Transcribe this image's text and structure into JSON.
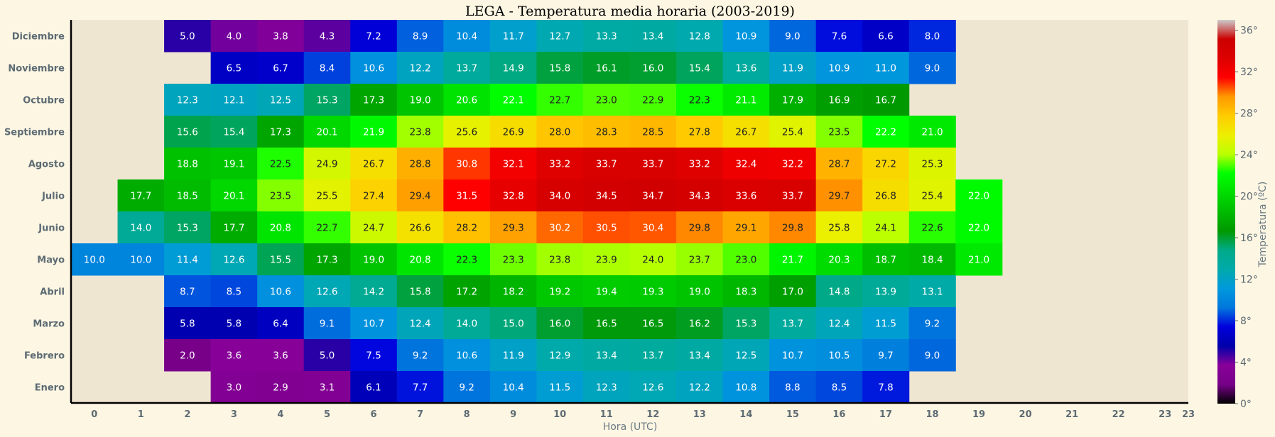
{
  "chart_data": {
    "type": "heatmap",
    "title": "LEGA - Temperatura media horaria (2003-2019)",
    "xlabel": "Hora (UTC)",
    "colorbar_label": "Temperatura (ºC)",
    "x": [
      0,
      1,
      2,
      3,
      4,
      5,
      6,
      7,
      8,
      9,
      10,
      11,
      12,
      13,
      14,
      15,
      16,
      17,
      18,
      19,
      20,
      21,
      22,
      23
    ],
    "y_categories": [
      "Diciembre",
      "Noviembre",
      "Octubre",
      "Septiembre",
      "Agosto",
      "Julio",
      "Junio",
      "Mayo",
      "Abril",
      "Marzo",
      "Febrero",
      "Enero"
    ],
    "colorbar_range": [
      0,
      37
    ],
    "colorbar_ticks": [
      "0°",
      "4°",
      "8°",
      "12°",
      "16°",
      "20°",
      "24°",
      "28°",
      "32°",
      "36°"
    ],
    "colormap": "nipy_spectral",
    "missing_color": "#efe6d2",
    "values": [
      [
        null,
        null,
        5.0,
        4.0,
        3.8,
        4.3,
        7.2,
        8.9,
        10.4,
        11.7,
        12.7,
        13.3,
        13.4,
        12.8,
        10.9,
        9.0,
        7.6,
        6.6,
        8.0,
        null,
        null,
        null,
        null,
        null
      ],
      [
        null,
        null,
        null,
        6.5,
        6.7,
        8.4,
        10.6,
        12.2,
        13.7,
        14.9,
        15.8,
        16.1,
        16.0,
        15.4,
        13.6,
        11.9,
        10.9,
        11.0,
        9.0,
        null,
        null,
        null,
        null,
        null
      ],
      [
        null,
        null,
        12.3,
        12.1,
        12.5,
        15.3,
        17.3,
        19.0,
        20.6,
        22.1,
        22.7,
        23.0,
        22.9,
        22.3,
        21.1,
        17.9,
        16.9,
        16.7,
        null,
        null,
        null,
        null,
        null,
        null
      ],
      [
        null,
        null,
        15.6,
        15.4,
        17.3,
        20.1,
        21.9,
        23.8,
        25.6,
        26.9,
        28.0,
        28.3,
        28.5,
        27.8,
        26.7,
        25.4,
        23.5,
        22.2,
        21.0,
        null,
        null,
        null,
        null,
        null
      ],
      [
        null,
        null,
        18.8,
        19.1,
        22.5,
        24.9,
        26.7,
        28.8,
        30.8,
        32.1,
        33.2,
        33.7,
        33.7,
        33.2,
        32.4,
        32.2,
        28.7,
        27.2,
        25.3,
        null,
        null,
        null,
        null,
        null
      ],
      [
        null,
        17.7,
        18.5,
        20.1,
        23.5,
        25.5,
        27.4,
        29.4,
        31.5,
        32.8,
        34.0,
        34.5,
        34.7,
        34.3,
        33.6,
        33.7,
        29.7,
        26.8,
        25.4,
        22.0,
        null,
        null,
        null,
        null
      ],
      [
        null,
        14.0,
        15.3,
        17.7,
        20.8,
        22.7,
        24.7,
        26.6,
        28.2,
        29.3,
        30.2,
        30.5,
        30.4,
        29.8,
        29.1,
        29.8,
        25.8,
        24.1,
        22.6,
        22.0,
        null,
        null,
        null,
        null
      ],
      [
        10.0,
        10.0,
        11.4,
        12.6,
        15.5,
        17.3,
        19.0,
        20.8,
        22.3,
        23.3,
        23.8,
        23.9,
        24.0,
        23.7,
        23.0,
        21.7,
        20.3,
        18.7,
        18.4,
        21.0,
        null,
        null,
        null,
        null
      ],
      [
        null,
        null,
        8.7,
        8.5,
        10.6,
        12.6,
        14.2,
        15.8,
        17.2,
        18.2,
        19.2,
        19.4,
        19.3,
        19.0,
        18.3,
        17.0,
        14.8,
        13.9,
        13.1,
        null,
        null,
        null,
        null,
        null
      ],
      [
        null,
        null,
        5.8,
        5.8,
        6.4,
        9.1,
        10.7,
        12.4,
        14.0,
        15.0,
        16.0,
        16.5,
        16.5,
        16.2,
        15.3,
        13.7,
        12.4,
        11.5,
        9.2,
        null,
        null,
        null,
        null,
        null
      ],
      [
        null,
        null,
        2.0,
        3.6,
        3.6,
        5.0,
        7.5,
        9.2,
        10.6,
        11.9,
        12.9,
        13.4,
        13.7,
        13.4,
        12.5,
        10.7,
        10.5,
        9.7,
        9.0,
        null,
        null,
        null,
        null,
        null
      ],
      [
        null,
        null,
        null,
        3.0,
        2.9,
        3.1,
        6.1,
        7.7,
        9.2,
        10.4,
        11.5,
        12.3,
        12.6,
        12.2,
        10.8,
        8.8,
        8.5,
        7.8,
        null,
        null,
        null,
        null,
        null,
        null
      ]
    ]
  }
}
